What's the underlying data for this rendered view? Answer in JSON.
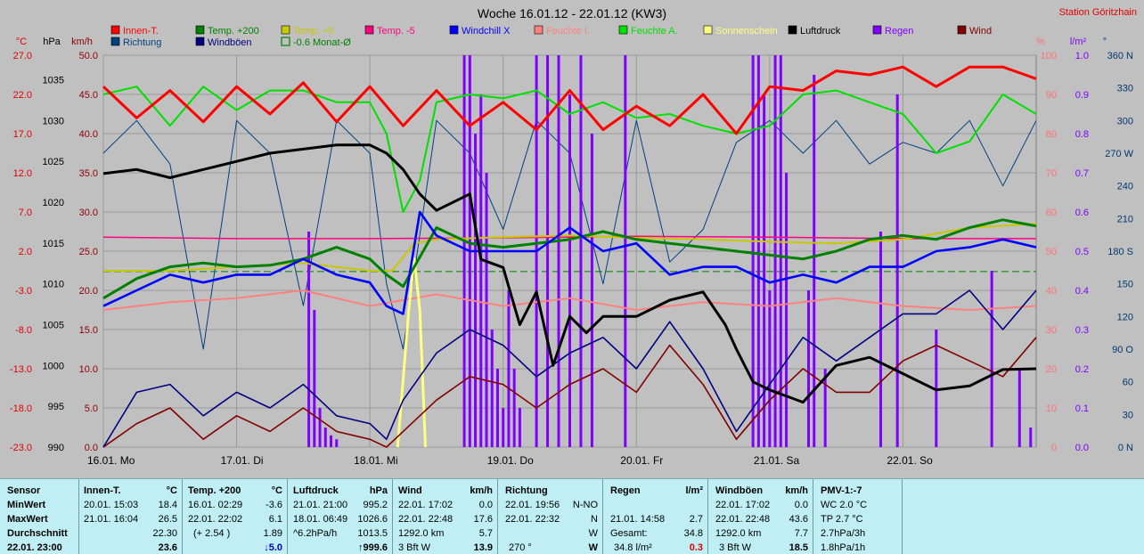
{
  "chart_data": {
    "type": "line",
    "title": "Woche 16.01.12 - 22.01.12 (KW3)",
    "station": "Station Göritzhain",
    "x_days": [
      "16.01. Mo",
      "17.01. Di",
      "18.01. Mi",
      "19.01. Do",
      "20.01. Fr",
      "21.01. Sa",
      "22.01. So"
    ],
    "x_range_hours": [
      0,
      168
    ],
    "axes": {
      "temp_c": {
        "unit": "°C",
        "ticks": [
          "27.0",
          "22.0",
          "17.0",
          "12.0",
          "7.0",
          "2.0",
          "-3.0",
          "-8.0",
          "-13.0",
          "-18.0",
          "-23.0"
        ],
        "range": [
          -23,
          27
        ]
      },
      "pressure_hpa": {
        "unit": "hPa",
        "ticks": [
          "1035",
          "1030",
          "1025",
          "1020",
          "1015",
          "1010",
          "1005",
          "1000",
          "995",
          "990"
        ],
        "range": [
          990,
          1038
        ]
      },
      "wind_kmh": {
        "unit": "km/h",
        "ticks": [
          "50.0",
          "45.0",
          "40.0",
          "35.0",
          "30.0",
          "25.0",
          "20.0",
          "15.0",
          "10.0",
          "5.0",
          "0.0"
        ],
        "range": [
          0,
          50
        ]
      },
      "humidity_pct": {
        "unit": "%",
        "ticks": [
          "100",
          "90",
          "80",
          "70",
          "60",
          "50",
          "40",
          "30",
          "20",
          "10",
          "0"
        ],
        "range": [
          0,
          100
        ]
      },
      "rain_lm2": {
        "unit": "l/m²",
        "ticks": [
          "1.0",
          "0.9",
          "0.8",
          "0.7",
          "0.6",
          "0.5",
          "0.4",
          "0.3",
          "0.2",
          "0.1",
          "0.0"
        ],
        "range": [
          0,
          1
        ]
      },
      "direction_deg": {
        "unit": "°",
        "ticks": [
          "360 N",
          "330",
          "300",
          "270 W",
          "240",
          "210",
          "180 S",
          "150",
          "120",
          "90 O",
          "60",
          "30",
          "0 N"
        ],
        "range": [
          0,
          360
        ]
      }
    },
    "legend": [
      {
        "name": "Innen-T.",
        "color": "#ff0000"
      },
      {
        "name": "Temp. +200",
        "color": "#008000"
      },
      {
        "name": "Temp. +5",
        "color": "#c8c800"
      },
      {
        "name": "Temp. -5",
        "color": "#ff0080"
      },
      {
        "name": "Windchill X",
        "color": "#0000ff"
      },
      {
        "name": "Feuchte I.",
        "color": "#ff8080"
      },
      {
        "name": "Feuchte A.",
        "color": "#00e000"
      },
      {
        "name": "Sonnenschein",
        "color": "#ffff80"
      },
      {
        "name": "Luftdruck",
        "color": "#000000"
      },
      {
        "name": "Regen",
        "color": "#8000ff"
      },
      {
        "name": "Wind",
        "color": "#800000"
      },
      {
        "name": "Richtung",
        "color": "#004080"
      },
      {
        "name": "Windböen",
        "color": "#000080"
      },
      {
        "name": "-0.6 Monat-Ø",
        "color": "#008000"
      }
    ],
    "series": [
      {
        "name": "Innen-T.",
        "axis": "temp_c",
        "x": [
          0,
          6,
          12,
          18,
          24,
          30,
          36,
          42,
          48,
          54,
          60,
          66,
          72,
          78,
          84,
          90,
          96,
          102,
          108,
          114,
          120,
          126,
          132,
          138,
          144,
          150,
          156,
          162,
          168
        ],
        "y": [
          23,
          19,
          22.5,
          18.5,
          23,
          19.5,
          23.5,
          18.5,
          23,
          18,
          22.5,
          18,
          21,
          17.5,
          22.5,
          17.5,
          20.5,
          18,
          22,
          17,
          23,
          22.5,
          25,
          24.5,
          25.5,
          23,
          25.5,
          25.5,
          24
        ]
      },
      {
        "name": "Temp. +200",
        "axis": "temp_c",
        "x": [
          0,
          6,
          12,
          18,
          24,
          30,
          36,
          42,
          48,
          51,
          54,
          60,
          66,
          72,
          78,
          84,
          90,
          96,
          102,
          108,
          114,
          120,
          126,
          132,
          138,
          144,
          150,
          156,
          162,
          168
        ],
        "y": [
          -4,
          -1.5,
          0,
          0.5,
          0,
          0.2,
          1,
          2.5,
          1,
          -1,
          -2.5,
          5,
          3,
          2.5,
          3,
          3.5,
          4.5,
          3.5,
          3,
          2.5,
          2,
          1.5,
          1,
          2,
          3.5,
          4,
          3.5,
          5,
          6,
          5.2
        ]
      },
      {
        "name": "Temp. +5",
        "axis": "temp_c",
        "x": [
          0,
          12,
          24,
          36,
          48,
          52,
          56,
          60,
          72,
          84,
          96,
          108,
          120,
          132,
          144,
          156,
          168
        ],
        "y": [
          -0.5,
          -0.5,
          0,
          0.5,
          -0.5,
          -0.5,
          3,
          3.5,
          3.8,
          4,
          3.7,
          3.5,
          3.2,
          3,
          3.5,
          5,
          5.5
        ]
      },
      {
        "name": "Temp. -5",
        "axis": "temp_c",
        "x": [
          0,
          24,
          48,
          72,
          96,
          120,
          144,
          168
        ],
        "y": [
          3.8,
          3.6,
          3.6,
          3.7,
          3.9,
          3.8,
          3.6,
          3.6
        ]
      },
      {
        "name": "Windchill X",
        "axis": "temp_c",
        "x": [
          0,
          6,
          12,
          18,
          24,
          30,
          36,
          42,
          48,
          51,
          54,
          57,
          60,
          66,
          72,
          78,
          84,
          90,
          96,
          102,
          108,
          114,
          120,
          126,
          132,
          138,
          144,
          150,
          156,
          162,
          168
        ],
        "y": [
          -5,
          -3,
          -1,
          -2,
          -1,
          -1,
          1,
          -1,
          -2,
          -5,
          -6,
          7,
          4,
          2,
          2,
          2,
          5,
          2,
          3,
          -1,
          0,
          0,
          -2,
          -1,
          -2,
          0,
          0,
          2,
          2.5,
          3.5,
          2.5
        ]
      },
      {
        "name": "Feuchte I.",
        "axis": "humidity_pct",
        "x": [
          0,
          12,
          24,
          36,
          48,
          60,
          72,
          84,
          96,
          108,
          120,
          132,
          144,
          156,
          168
        ],
        "y": [
          35,
          37,
          38,
          40,
          36,
          39,
          36,
          38,
          35,
          37,
          36,
          38,
          36,
          35,
          36
        ]
      },
      {
        "name": "Feuchte A.",
        "axis": "humidity_pct",
        "x": [
          0,
          6,
          12,
          18,
          24,
          30,
          36,
          42,
          48,
          51,
          54,
          57,
          60,
          66,
          72,
          78,
          84,
          90,
          96,
          102,
          108,
          114,
          120,
          126,
          132,
          138,
          144,
          150,
          156,
          162,
          168
        ],
        "y": [
          90,
          92,
          82,
          92,
          86,
          91,
          91,
          88,
          88,
          80,
          60,
          68,
          88,
          90,
          89,
          91,
          85,
          88,
          84,
          85,
          82,
          80,
          82,
          90,
          91,
          88,
          85,
          75,
          78,
          90,
          85
        ]
      },
      {
        "name": "Sonnenschein",
        "axis": "humidity_pct",
        "x": [
          53,
          55,
          56,
          57,
          58
        ],
        "y": [
          0,
          35,
          48,
          35,
          0
        ]
      },
      {
        "name": "Luftdruck",
        "axis": "pressure_hpa",
        "x": [
          0,
          6,
          12,
          18,
          24,
          30,
          36,
          42,
          48,
          51,
          54,
          57,
          60,
          66,
          68,
          72,
          75,
          78,
          81,
          84,
          87,
          90,
          96,
          102,
          108,
          112,
          114,
          117,
          120,
          126,
          132,
          138,
          144,
          150,
          156,
          162,
          168
        ],
        "y": [
          1023.5,
          1024,
          1023,
          1024,
          1025,
          1026,
          1026.5,
          1027,
          1027,
          1026,
          1024,
          1021,
          1019,
          1021,
          1013,
          1012,
          1005,
          1009,
          1000,
          1006,
          1004,
          1006,
          1006,
          1008,
          1009,
          1005,
          1002,
          998,
          997,
          995.5,
          1000,
          1001,
          999,
          997,
          997.5,
          999.5,
          999.6
        ]
      },
      {
        "name": "Wind",
        "axis": "wind_kmh",
        "x": [
          0,
          6,
          12,
          18,
          24,
          30,
          36,
          42,
          48,
          51,
          54,
          60,
          66,
          72,
          78,
          84,
          90,
          96,
          102,
          108,
          114,
          120,
          126,
          132,
          138,
          144,
          150,
          156,
          162,
          168
        ],
        "y": [
          0,
          3,
          5,
          1,
          4,
          2,
          5,
          2,
          1,
          0,
          2,
          6,
          9,
          8,
          5,
          8,
          10,
          7,
          13,
          8,
          1,
          6,
          10,
          7,
          7,
          11,
          13,
          11,
          9,
          14
        ]
      },
      {
        "name": "Windböen",
        "axis": "wind_kmh",
        "x": [
          0,
          6,
          12,
          18,
          24,
          30,
          36,
          42,
          48,
          51,
          54,
          60,
          66,
          72,
          78,
          84,
          90,
          96,
          102,
          108,
          114,
          120,
          126,
          132,
          138,
          144,
          150,
          156,
          162,
          168
        ],
        "y": [
          0,
          7,
          8,
          4,
          7,
          5,
          8,
          4,
          3,
          1,
          6,
          12,
          15,
          13,
          9,
          12,
          14,
          10,
          16,
          10,
          2,
          8,
          14,
          11,
          14,
          17,
          17,
          20,
          15,
          20
        ]
      },
      {
        "name": "Richtung",
        "axis": "direction_deg",
        "x": [
          0,
          6,
          12,
          18,
          24,
          30,
          36,
          42,
          48,
          51,
          54,
          60,
          66,
          72,
          78,
          84,
          90,
          96,
          102,
          108,
          114,
          120,
          126,
          132,
          138,
          144,
          150,
          156,
          162,
          168
        ],
        "y": [
          270,
          300,
          260,
          90,
          300,
          270,
          130,
          300,
          270,
          150,
          90,
          300,
          270,
          200,
          300,
          270,
          150,
          300,
          170,
          200,
          280,
          300,
          270,
          300,
          260,
          280,
          270,
          300,
          240,
          300
        ]
      },
      {
        "name": "Regen",
        "axis": "rain_lm2",
        "x": [
          37,
          38,
          39,
          40,
          41,
          42,
          65,
          66,
          67,
          68,
          69,
          70,
          71,
          72,
          73,
          74,
          75,
          78,
          80,
          82,
          84,
          86,
          88,
          94,
          117,
          118,
          119,
          120,
          121,
          122,
          123,
          127,
          128,
          130,
          140,
          143,
          150,
          160,
          165,
          167
        ],
        "y": [
          0.55,
          0.35,
          0.1,
          0.05,
          0.03,
          0.02,
          1,
          1,
          0.8,
          0.9,
          0.7,
          0.3,
          0.2,
          0.1,
          0.4,
          0.2,
          0.1,
          1,
          1,
          1,
          0.9,
          1,
          0.8,
          1,
          1,
          1,
          0.9,
          0.4,
          1,
          1,
          0.7,
          0.4,
          0.95,
          0.2,
          0.55,
          0.9,
          0.3,
          0.45,
          0.2,
          0.05
        ]
      }
    ],
    "monthly_avg_temp_c": -0.6,
    "grid": true
  },
  "stats": {
    "labels": {
      "sensor": "Sensor",
      "min": "MinWert",
      "max": "MaxWert",
      "avg": "Durchschnitt",
      "now": "22.01. 23:00"
    },
    "innen": {
      "head": "Innen-T.",
      "unit": "°C",
      "min_t": "20.01. 15:03",
      "min_v": "18.4",
      "max_t": "21.01. 16:04",
      "max_v": "26.5",
      "avg": "22.30",
      "now": "23.6"
    },
    "temp200": {
      "head": "Temp. +200",
      "unit": "°C",
      "min_t": "16.01. 02:29",
      "min_v": "-3.6",
      "max_t": "22.01. 22:02",
      "max_v": "6.1",
      "avg_t": "(+ 2.54 )",
      "avg": "1.89",
      "now": "↓5.0"
    },
    "luftdruck": {
      "head": "Luftdruck",
      "unit": "hPa",
      "min_t": "21.01. 21:00",
      "min_v": "995.2",
      "max_t": "18.01. 06:49",
      "max_v": "1026.6",
      "avg_t": "^6.2hPa/h",
      "avg": "1013.5",
      "now": "↑999.6"
    },
    "wind": {
      "head": "Wind",
      "unit": "km/h",
      "min_t": "22.01. 17:02",
      "min_v": "0.0",
      "max_t": "22.01. 22:48",
      "max_v": "17.6",
      "avg_t": "1292.0 km",
      "avg": "5.7",
      "now_t": "3 Bft W",
      "now": "13.9"
    },
    "richtung": {
      "head": "Richtung",
      "min_t": "22.01. 19:56",
      "min_v": "N-NO",
      "max_t": "22.01. 22:32",
      "max_v": "N",
      "avg": "W",
      "now_t": "270 °",
      "now": "W"
    },
    "regen": {
      "head": "Regen",
      "unit": "l/m²",
      "max_t": "21.01. 14:58",
      "max_v": "2.7",
      "avg_t": "Gesamt:",
      "avg": "34.8",
      "now_t": "34.8 l/m²",
      "now": "0.3"
    },
    "boeen": {
      "head": "Windböen",
      "unit": "km/h",
      "min_t": "22.01. 17:02",
      "min_v": "0.0",
      "max_t": "22.01. 22:48",
      "max_v": "43.6",
      "avg_t": "1292.0 km",
      "avg": "7.7",
      "now_t": "3 Bft W",
      "now": "18.5"
    },
    "pmv": {
      "head": "PMV-1:-7",
      "l1": "WC 2.0 °C",
      "l2": "TP 2.7 °C",
      "l3": "2.7hPa/3h",
      "l4": "1.8hPa/1h"
    }
  }
}
